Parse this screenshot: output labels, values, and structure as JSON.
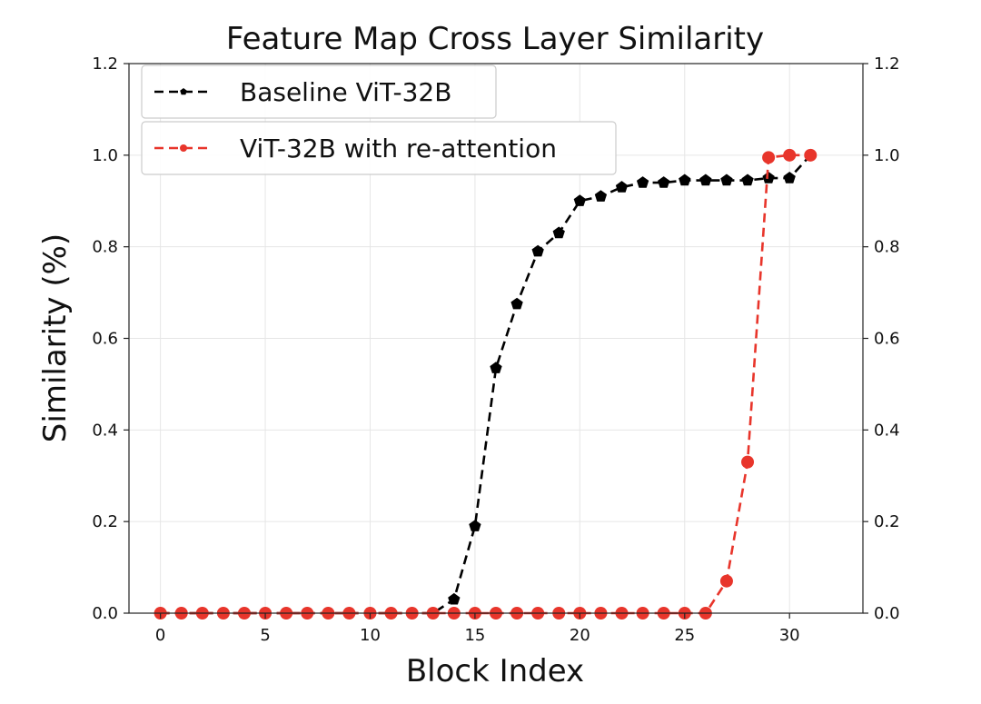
{
  "chart_data": {
    "type": "line",
    "title": "Feature Map Cross Layer Similarity",
    "xlabel": "Block Index",
    "ylabel": "Similarity (%)",
    "xlim": [
      -1.5,
      33.5
    ],
    "ylim": [
      0.0,
      1.2
    ],
    "xticks": [
      0,
      5,
      10,
      15,
      20,
      25,
      30
    ],
    "yticks": [
      0.0,
      0.2,
      0.4,
      0.6,
      0.8,
      1.0,
      1.2
    ],
    "ytick_labels": [
      "0.0",
      "0.2",
      "0.4",
      "0.6",
      "0.8",
      "1.0",
      "1.2"
    ],
    "right_axis_ticks": true,
    "grid": true,
    "legend_position": "top-left",
    "x": [
      0,
      1,
      2,
      3,
      4,
      5,
      6,
      7,
      8,
      9,
      10,
      11,
      12,
      13,
      14,
      15,
      16,
      17,
      18,
      19,
      20,
      21,
      22,
      23,
      24,
      25,
      26,
      27,
      28,
      29,
      30,
      31
    ],
    "series": [
      {
        "name": "Baseline ViT-32B",
        "color": "#000000",
        "marker": "pentagon",
        "line_style": "dashed",
        "values": [
          0.0,
          0.0,
          0.0,
          0.0,
          0.0,
          0.0,
          0.0,
          0.0,
          0.0,
          0.0,
          0.0,
          0.0,
          0.0,
          0.0,
          0.03,
          0.19,
          0.535,
          0.675,
          0.79,
          0.83,
          0.9,
          0.91,
          0.93,
          0.94,
          0.94,
          0.945,
          0.945,
          0.945,
          0.945,
          0.95,
          0.95,
          1.0
        ]
      },
      {
        "name": "ViT-32B with re-attention",
        "color": "#e8352b",
        "marker": "circle",
        "line_style": "dashed",
        "values": [
          0.0,
          0.0,
          0.0,
          0.0,
          0.0,
          0.0,
          0.0,
          0.0,
          0.0,
          0.0,
          0.0,
          0.0,
          0.0,
          0.0,
          0.0,
          0.0,
          0.0,
          0.0,
          0.0,
          0.0,
          0.0,
          0.0,
          0.0,
          0.0,
          0.0,
          0.0,
          0.0,
          0.07,
          0.33,
          0.995,
          1.0,
          1.0
        ]
      }
    ]
  }
}
